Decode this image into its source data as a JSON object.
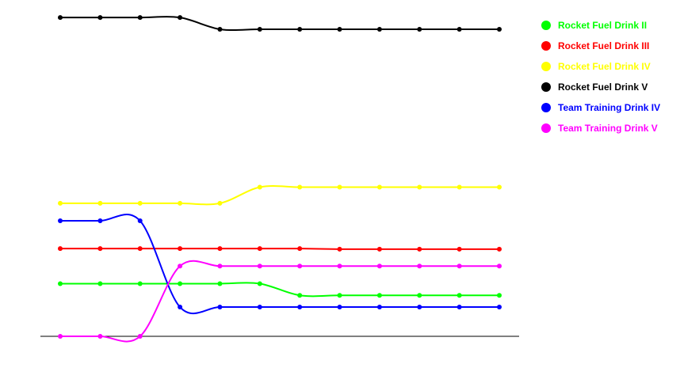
{
  "chart_data": {
    "type": "line",
    "title": "",
    "xlabel": "",
    "ylabel": "",
    "x": [
      1,
      2,
      3,
      4,
      5,
      6,
      7,
      8,
      9,
      10,
      11,
      12
    ],
    "ylim": [
      0,
      115
    ],
    "smooth": true,
    "grid": false,
    "legend_position": "top-right",
    "series": [
      {
        "name": "Rocket Fuel Drink II",
        "color": "#00ff00",
        "values": [
          18,
          18,
          18,
          18,
          18,
          18,
          14,
          14,
          14,
          14,
          14,
          14
        ]
      },
      {
        "name": "Rocket Fuel Drink III",
        "color": "#ff0000",
        "values": [
          30,
          30,
          30,
          30,
          30,
          30,
          30,
          29.8,
          29.8,
          29.8,
          29.8,
          29.8
        ]
      },
      {
        "name": "Rocket Fuel Drink IV",
        "color": "#ffff00",
        "values": [
          45.5,
          45.5,
          45.5,
          45.5,
          45.5,
          51,
          51,
          51,
          51,
          51,
          51,
          51
        ]
      },
      {
        "name": "Rocket Fuel Drink V",
        "color": "#000000",
        "values": [
          109,
          109,
          109,
          109,
          105,
          105,
          105,
          105,
          105,
          105,
          105,
          105
        ]
      },
      {
        "name": "Team Training Drink IV",
        "color": "#0000ff",
        "values": [
          39.5,
          39.5,
          39.5,
          10,
          10,
          10,
          10,
          10,
          10,
          10,
          10,
          10
        ]
      },
      {
        "name": "Team Training Drink V",
        "color": "#ff00ff",
        "values": [
          0,
          0,
          0,
          24,
          24,
          24,
          24,
          24,
          24,
          24,
          24,
          24
        ]
      }
    ]
  }
}
